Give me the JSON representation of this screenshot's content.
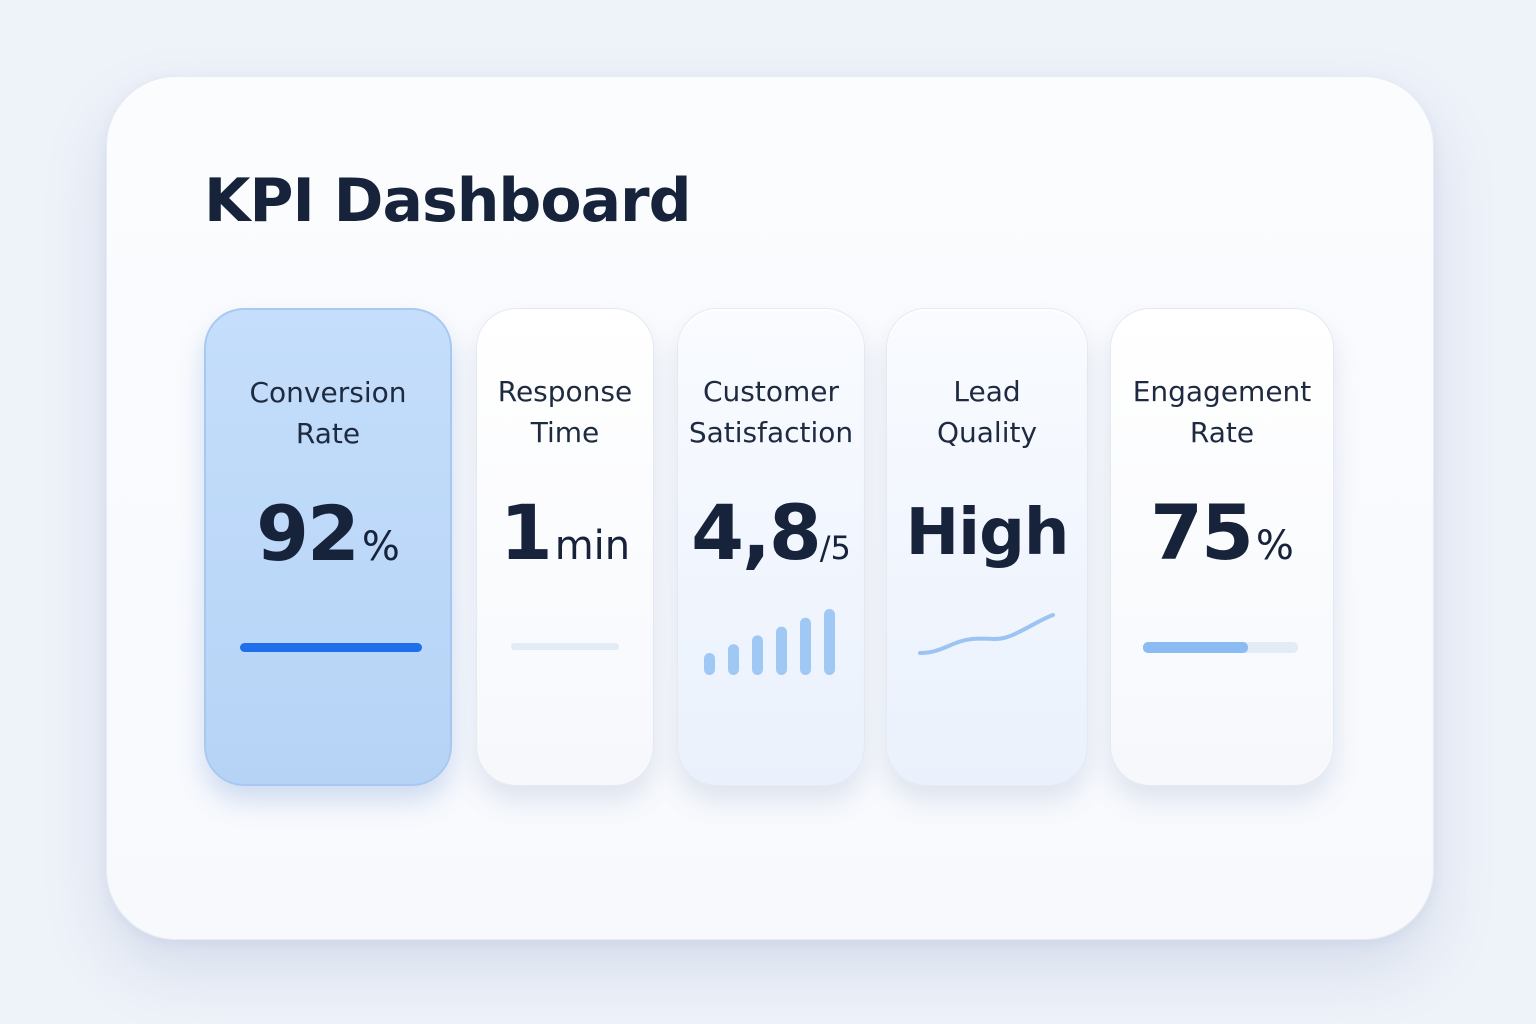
{
  "dashboard": {
    "title": "KPI Dashboard"
  },
  "kpis": [
    {
      "label_line1": "Conversion",
      "label_line2": "Rate",
      "value": "92",
      "unit": "%",
      "progress": 1.0,
      "color": "#1f6feb"
    },
    {
      "label_line1": "Response",
      "label_line2": "Time",
      "value": "1",
      "unit": "min",
      "progress": 0.0,
      "color": "#e3ebf6"
    },
    {
      "label_line1": "Customer",
      "label_line2": "Satisfaction",
      "value": "4,8",
      "unit": "/5",
      "bars": [
        1,
        2,
        3,
        4,
        5,
        6
      ],
      "color": "#9fc8f5"
    },
    {
      "label_line1": "Lead",
      "label_line2": "Quality",
      "value": "High",
      "unit": "",
      "trend": "upward",
      "color": "#9cc4f2"
    },
    {
      "label_line1": "Engagement",
      "label_line2": "Rate",
      "value": "75",
      "unit": "%",
      "progress": 0.68,
      "color": "#8bbbf3"
    }
  ]
}
